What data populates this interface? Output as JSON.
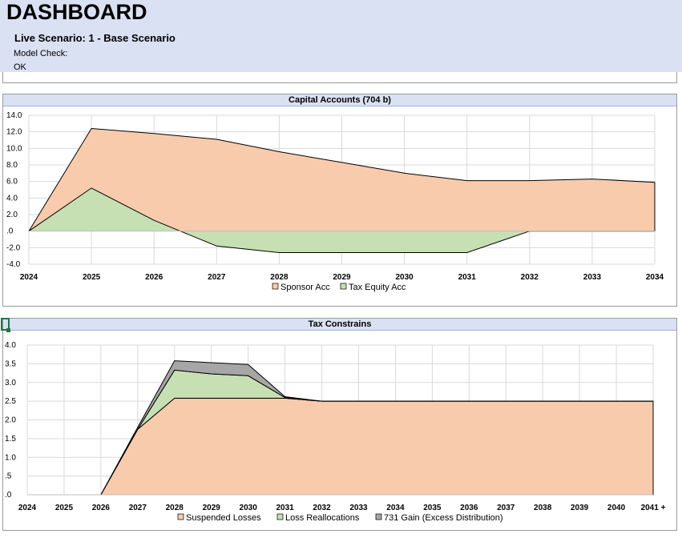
{
  "header": {
    "title": "DASHBOARD",
    "scenario": "Live Scenario: 1 - Base Scenario",
    "model_check_label": "Model Check:",
    "model_check_value": "OK"
  },
  "colors": {
    "header_bg": "#d9e1f2",
    "sponsor_fill": "#f8cbad",
    "tax_equity_fill": "#c6e0b4",
    "gain_fill": "#a6a6a6",
    "grid": "#d9d9d9"
  },
  "chart_data": [
    {
      "type": "area",
      "title": "Capital Accounts (704 b)",
      "x": [
        "2024",
        "2025",
        "2026",
        "2027",
        "2028",
        "2029",
        "2030",
        "2031",
        "2032",
        "2033",
        "2034"
      ],
      "ylim": [
        -4,
        14
      ],
      "yticks": [
        "14.0",
        "12.0",
        "10.0",
        "8.0",
        "6.0",
        "4.0",
        "2.0",
        ".0",
        "-2.0",
        "-4.0"
      ],
      "grid": true,
      "legend_position": "bottom",
      "stacked": false,
      "series": [
        {
          "name": "Sponsor Acc",
          "color": "#f8cbad",
          "values": [
            0,
            12.4,
            11.8,
            11.1,
            9.6,
            8.3,
            7.0,
            6.1,
            6.1,
            6.3,
            5.9
          ]
        },
        {
          "name": "Tax Equity Acc",
          "color": "#c6e0b4",
          "values": [
            0,
            5.2,
            1.3,
            -1.8,
            -2.6,
            -2.6,
            -2.6,
            -2.6,
            0,
            0,
            0
          ]
        }
      ]
    },
    {
      "type": "area",
      "title": "Tax Constrains",
      "x": [
        "2024",
        "2025",
        "2026",
        "2027",
        "2028",
        "2029",
        "2030",
        "2031",
        "2032",
        "2033",
        "2034",
        "2035",
        "2036",
        "2037",
        "2038",
        "2039",
        "2040",
        "2041 +"
      ],
      "ylim": [
        0,
        4
      ],
      "yticks": [
        "4.0",
        "3.5",
        "3.0",
        "2.5",
        "2.0",
        "1.5",
        "1.0",
        ".5",
        ".0"
      ],
      "grid": true,
      "legend_position": "bottom",
      "stacked": true,
      "series": [
        {
          "name": "Suspended Losses",
          "color": "#f8cbad",
          "values": [
            0,
            0,
            0,
            1.75,
            2.58,
            2.58,
            2.58,
            2.58,
            2.5,
            2.5,
            2.5,
            2.5,
            2.5,
            2.5,
            2.5,
            2.5,
            2.5,
            2.5
          ]
        },
        {
          "name": "Loss Reallocations",
          "color": "#c6e0b4",
          "values": [
            0,
            0,
            0,
            0,
            0.75,
            0.65,
            0.6,
            0.02,
            0,
            0,
            0,
            0,
            0,
            0,
            0,
            0,
            0,
            0
          ]
        },
        {
          "name": "731 Gain (Excess Distribution)",
          "color": "#a6a6a6",
          "values": [
            0,
            0,
            0,
            0.05,
            0.25,
            0.3,
            0.3,
            0.02,
            0,
            0,
            0,
            0,
            0,
            0,
            0,
            0,
            0,
            0
          ]
        }
      ]
    }
  ]
}
